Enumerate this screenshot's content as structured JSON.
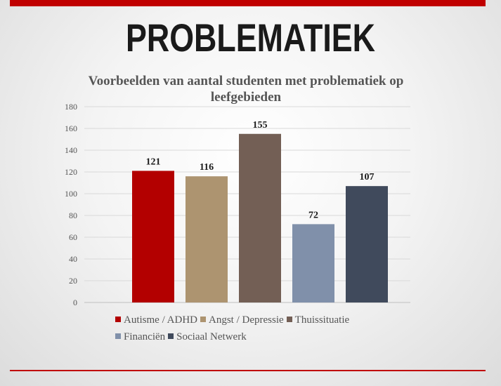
{
  "slide": {
    "title": "PROBLEMATIEK"
  },
  "chart_data": {
    "type": "bar",
    "title": "Voorbeelden van aantal studenten  met problematiek op leefgebieden",
    "categories": [
      "Autisme / ADHD",
      "Angst / Depressie",
      "Thuissituatie",
      "Financiën",
      "Sociaal Netwerk"
    ],
    "values": [
      121,
      116,
      155,
      72,
      107
    ],
    "colors": [
      "#b30000",
      "#ad9470",
      "#735f55",
      "#8090aa",
      "#404a5c"
    ],
    "ylim": [
      0,
      180
    ],
    "yticks": [
      0,
      20,
      40,
      60,
      80,
      100,
      120,
      140,
      160,
      180
    ],
    "grid": true,
    "legend": "bottom",
    "data_labels": true
  }
}
